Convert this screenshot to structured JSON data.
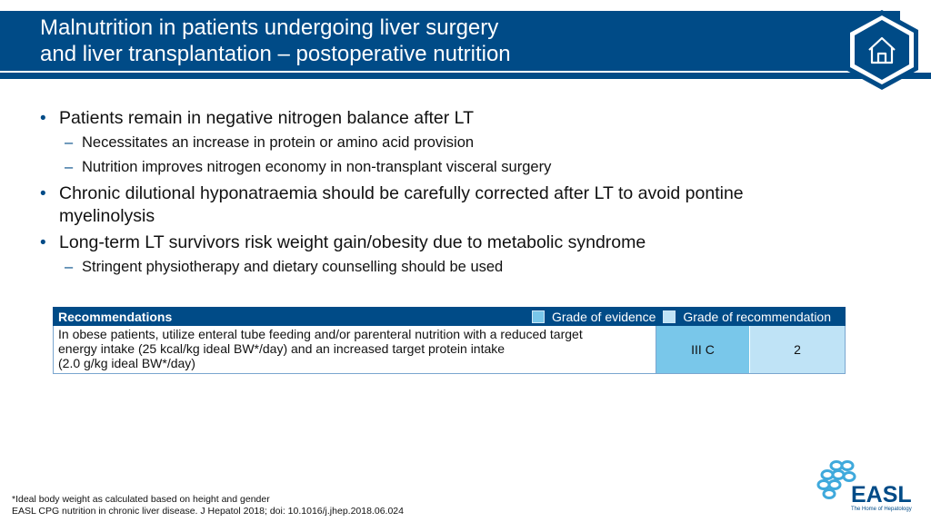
{
  "header": {
    "title": "Malnutrition in patients undergoing liver surgery\nand liver transplantation – postoperative nutrition",
    "color": "#004b87"
  },
  "home_button": {
    "icon": "home-icon"
  },
  "bullets": [
    {
      "text": "Patients remain in negative nitrogen balance after LT",
      "subs": [
        "Necessitates an increase in protein or amino acid provision",
        "Nutrition improves nitrogen economy in non-transplant visceral surgery"
      ]
    },
    {
      "text": "Chronic dilutional hyponatraemia should be carefully corrected after LT to avoid pontine myelinolysis",
      "subs": []
    },
    {
      "text": "Long-term LT survivors risk weight gain/obesity due to metabolic syndrome",
      "subs": [
        "Stringent physiotherapy and dietary counselling should be used"
      ]
    }
  ],
  "recommendations": {
    "header": "Recommendations",
    "legend_evidence": "Grade of evidence",
    "legend_recommendation": "Grade of recommendation",
    "evidence_color": "#79c7ea",
    "recommendation_color": "#bfe3f6",
    "text": "In obese patients, utilize enteral tube feeding and/or parenteral nutrition with a reduced target\nenergy intake (25 kcal/kg ideal BW*/day) and an increased target protein intake\n(2.0 g/kg ideal BW*/day)",
    "grade_evidence": "III C",
    "grade_recommendation": "2"
  },
  "footnotes": {
    "line1": "*Ideal body weight as calculated based on height and gender",
    "line2": "EASL CPG nutrition in chronic liver disease. J Hepatol 2018; doi: 10.1016/j.jhep.2018.06.024"
  },
  "logo": {
    "name": "EASL",
    "tagline": "The Home of Hepatology"
  }
}
